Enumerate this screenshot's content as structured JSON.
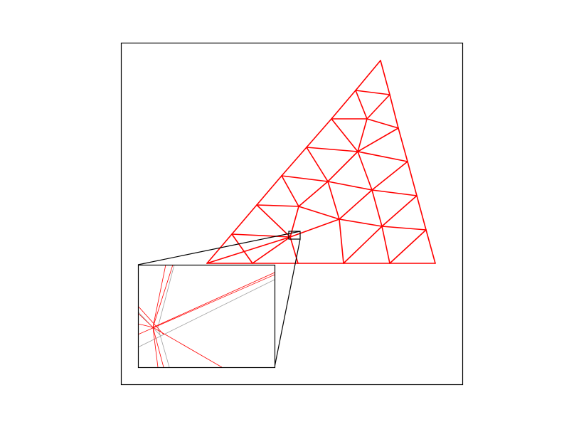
{
  "colors": {
    "mesh": "#ff0000",
    "reference": "#a0a0a0",
    "frame": "#000000",
    "background": "#ffffff"
  }
}
